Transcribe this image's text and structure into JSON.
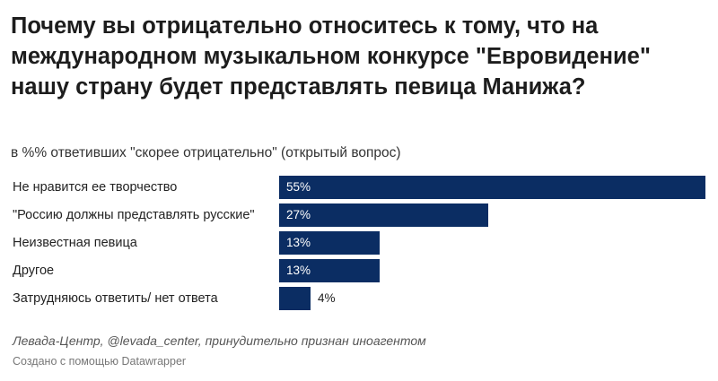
{
  "header": {
    "title": "Почему вы отрицательно относитесь к тому, что на международном музыкальном конкурсе \"Евровидение\" нашу страну будет представлять певица Манижа?",
    "subtitle": "в %% ответивших \"скорее отрицательно\" (открытый вопрос)"
  },
  "footer": {
    "source": "Левада-Центр, @levada_center, принудительно признан иноагентом",
    "credit": "Создано с помощью Datawrapper"
  },
  "colors": {
    "bar": "#0b2d63"
  },
  "chart_data": {
    "type": "bar",
    "orientation": "horizontal",
    "title": "Почему вы отрицательно относитесь к тому, что на международном музыкальном конкурсе \"Евровидение\" нашу страну будет представлять певица Манижа?",
    "subtitle": "в %% ответивших \"скорее отрицательно\" (открытый вопрос)",
    "categories": [
      "Не нравится ее творчество",
      "\"Россию должны представлять русские\"",
      "Неизвестная певица",
      "Другое",
      "Затрудняюсь ответить/ нет ответа"
    ],
    "values": [
      55,
      27,
      13,
      13,
      4
    ],
    "value_labels": [
      "55%",
      "27%",
      "13%",
      "13%",
      "4%"
    ],
    "xlim": [
      0,
      55
    ],
    "grid": false,
    "legend": "none"
  }
}
